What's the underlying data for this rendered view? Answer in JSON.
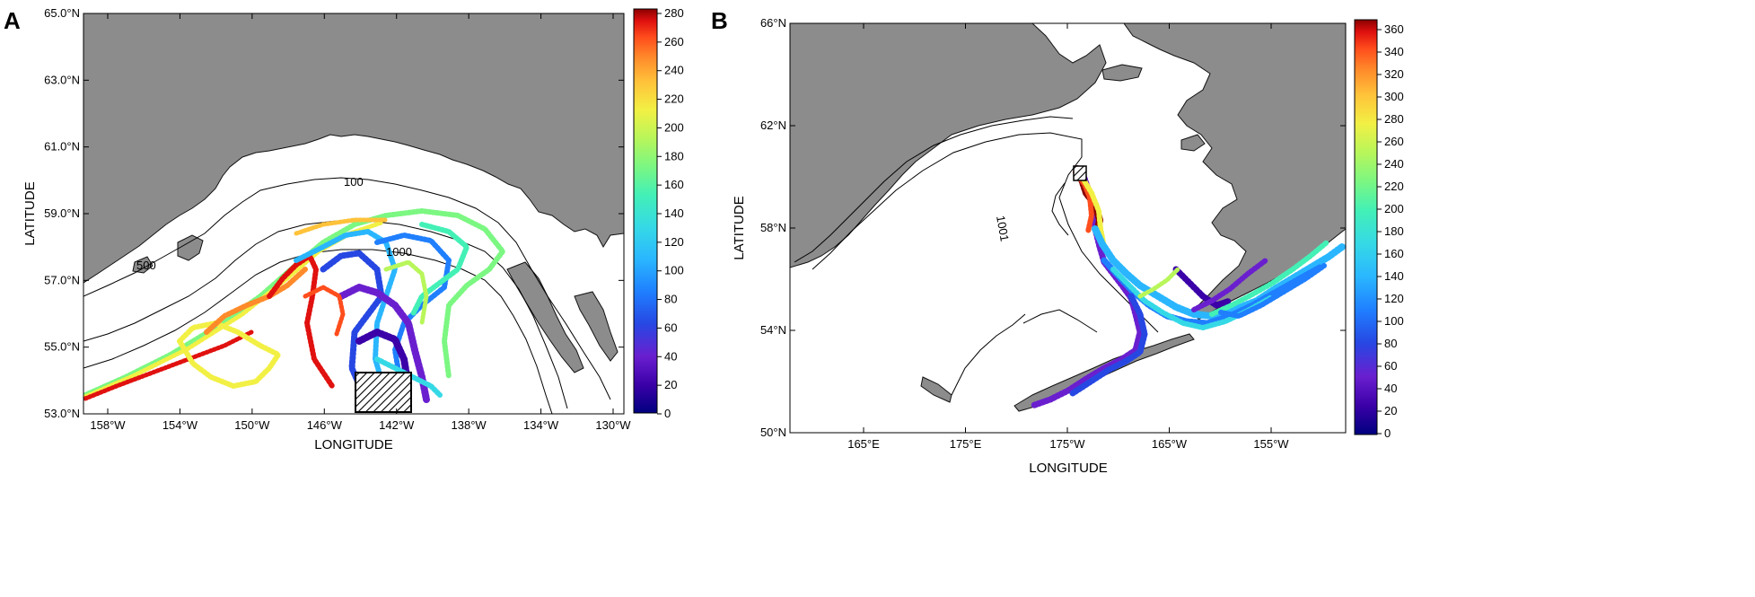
{
  "panels": [
    {
      "id": "A",
      "label": "A",
      "xlabel": "LONGITUDE",
      "ylabel": "LATITUDE",
      "x_ticks": [
        "158°W",
        "154°W",
        "150°W",
        "146°W",
        "142°W",
        "138°W",
        "134°W",
        "130°W"
      ],
      "y_ticks": [
        "65.0°N",
        "63.0°N",
        "61.0°N",
        "59.0°N",
        "57.0°N",
        "55.0°N",
        "53.0°N"
      ],
      "contour_labels": [
        "100",
        "500",
        "1000"
      ],
      "colorbar_ticks": [
        "280",
        "260",
        "240",
        "220",
        "200",
        "180",
        "160",
        "140",
        "120",
        "100",
        "80",
        "60",
        "40",
        "20",
        "0"
      ]
    },
    {
      "id": "B",
      "label": "B",
      "xlabel": "LONGITUDE",
      "ylabel": "LATITUDE",
      "x_ticks": [
        "165°E",
        "175°E",
        "175°W",
        "165°W",
        "155°W"
      ],
      "y_ticks": [
        "66°N",
        "62°N",
        "58°N",
        "54°N",
        "50°N"
      ],
      "contour_labels": [
        "1001"
      ],
      "colorbar_ticks": [
        "360",
        "340",
        "320",
        "300",
        "280",
        "260",
        "240",
        "220",
        "200",
        "180",
        "160",
        "140",
        "120",
        "100",
        "80",
        "60",
        "40",
        "20",
        "0"
      ]
    }
  ],
  "colors": {
    "land": "#8c8c8c",
    "ocean": "#ffffff",
    "colormap": [
      "#00007f",
      "#3b00a8",
      "#6a1fcf",
      "#2747e3",
      "#1f7fff",
      "#2ab6ff",
      "#35d9e6",
      "#43f0b6",
      "#7bf782",
      "#b8f65a",
      "#f2f044",
      "#ffc23a",
      "#ff8a2a",
      "#ff4d1c",
      "#e0110f",
      "#8b0000"
    ]
  }
}
